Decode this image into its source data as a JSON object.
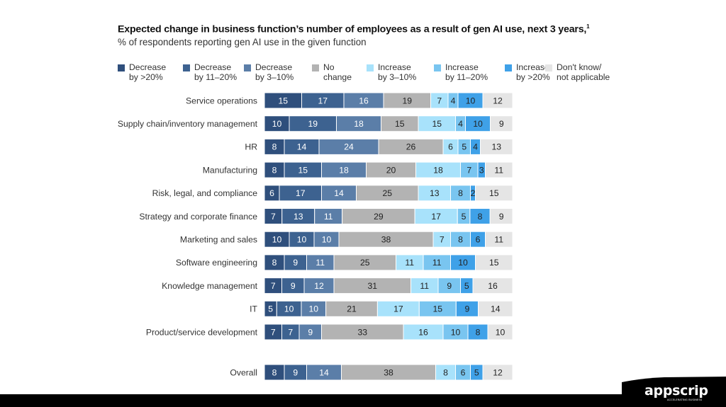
{
  "chart_data": {
    "type": "bar",
    "orientation": "horizontal",
    "stacked": true,
    "title": "Expected change in business function’s number of employees as a result of gen AI use, next 3 years,",
    "title_footnote": "1",
    "subtitle": "% of respondents reporting gen AI use in the given function",
    "xlabel": "",
    "ylabel": "",
    "xlim": [
      0,
      100
    ],
    "legend_position": "top",
    "categories": [
      "Service operations",
      "Supply chain/inventory management",
      "HR",
      "Manufacturing",
      "Risk, legal, and compliance",
      "Strategy and corporate finance",
      "Marketing and sales",
      "Software engineering",
      "Knowledge management",
      "IT",
      "Product/service development",
      "Overall"
    ],
    "series": [
      {
        "name": "Decrease by >20%",
        "legend_lines": [
          "Decrease",
          "by >20%"
        ],
        "color": "#2f4f7c",
        "label_color": "#ffffff",
        "values": [
          15,
          10,
          8,
          8,
          6,
          7,
          10,
          8,
          7,
          5,
          7,
          8
        ]
      },
      {
        "name": "Decrease by 11–20%",
        "legend_lines": [
          "Decrease",
          "by 11–20%"
        ],
        "color": "#3d6290",
        "label_color": "#ffffff",
        "values": [
          17,
          19,
          14,
          15,
          17,
          13,
          10,
          9,
          9,
          10,
          7,
          9
        ]
      },
      {
        "name": "Decrease by 3–10%",
        "legend_lines": [
          "Decrease",
          "by 3–10%"
        ],
        "color": "#5b7ea8",
        "label_color": "#ffffff",
        "values": [
          16,
          18,
          24,
          18,
          14,
          11,
          10,
          11,
          12,
          10,
          9,
          14
        ]
      },
      {
        "name": "No change",
        "legend_lines": [
          "No",
          "change"
        ],
        "color": "#b3b3b3",
        "label_color": "#222222",
        "values": [
          19,
          15,
          26,
          20,
          25,
          29,
          38,
          25,
          31,
          21,
          33,
          38
        ]
      },
      {
        "name": "Increase by 3–10%",
        "legend_lines": [
          "Increase",
          "by 3–10%"
        ],
        "color": "#a8e2fb",
        "label_color": "#222222",
        "values": [
          7,
          15,
          6,
          18,
          13,
          17,
          7,
          11,
          11,
          17,
          16,
          8
        ]
      },
      {
        "name": "Increase by 11–20%",
        "legend_lines": [
          "Increase",
          "by 11–20%"
        ],
        "color": "#79c5f0",
        "label_color": "#222222",
        "values": [
          4,
          4,
          5,
          7,
          8,
          5,
          8,
          11,
          9,
          15,
          10,
          6
        ]
      },
      {
        "name": "Increase by >20%",
        "legend_lines": [
          "Increase",
          "by >20%"
        ],
        "color": "#3fa1e8",
        "label_color": "#222222",
        "values": [
          10,
          10,
          4,
          3,
          2,
          8,
          6,
          10,
          5,
          9,
          8,
          5
        ]
      },
      {
        "name": "Don't know/not applicable",
        "legend_lines": [
          "Don't know/",
          "not applicable"
        ],
        "color": "#e5e5e5",
        "label_color": "#222222",
        "values": [
          12,
          9,
          13,
          11,
          15,
          9,
          11,
          15,
          16,
          14,
          10,
          12
        ]
      }
    ]
  },
  "branding": {
    "logo_text": "appscrip",
    "logo_tagline": "ACCELERATING BUSINESS"
  }
}
